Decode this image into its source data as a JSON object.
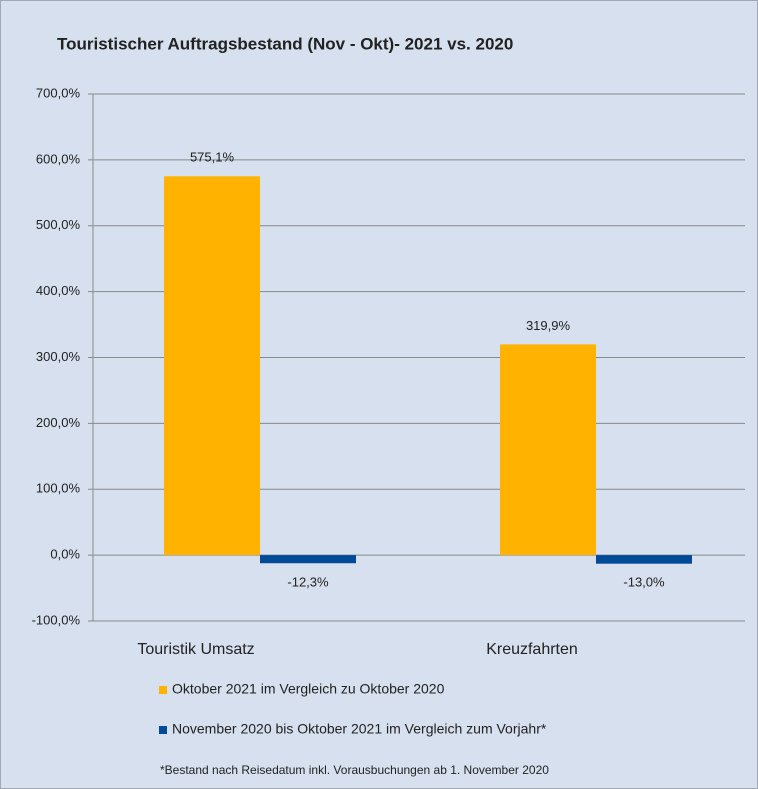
{
  "chart_data": {
    "type": "bar",
    "title": "Touristischer Auftragsbestand (Nov - Okt)- 2021 vs. 2020",
    "categories": [
      "Touristik Umsatz",
      "Kreuzfahrten"
    ],
    "series": [
      {
        "name": "Oktober 2021 im Vergleich zu Oktober 2020",
        "color": "#ffb300",
        "values": [
          575.1,
          319.9
        ],
        "value_labels": [
          "575,1%",
          "319,9%"
        ]
      },
      {
        "name": "November 2020 bis Oktober 2021 im Vergleich zum Vorjahr*",
        "color": "#004a98",
        "values": [
          -12.3,
          -13.0
        ],
        "value_labels": [
          "-12,3%",
          "-13,0%"
        ]
      }
    ],
    "ylim": [
      -100,
      700
    ],
    "yticks": [
      {
        "value": -100,
        "label": "-100,0%"
      },
      {
        "value": 0,
        "label": "0,0%"
      },
      {
        "value": 100,
        "label": "100,0%"
      },
      {
        "value": 200,
        "label": "200,0%"
      },
      {
        "value": 300,
        "label": "300,0%"
      },
      {
        "value": 400,
        "label": "400,0%"
      },
      {
        "value": 500,
        "label": "500,0%"
      },
      {
        "value": 600,
        "label": "600,0%"
      },
      {
        "value": 700,
        "label": "700,0%"
      }
    ],
    "grid": true,
    "footnote": "*Bestand nach Reisedatum inkl. Vorausbuchungen ab 1. November 2020"
  }
}
